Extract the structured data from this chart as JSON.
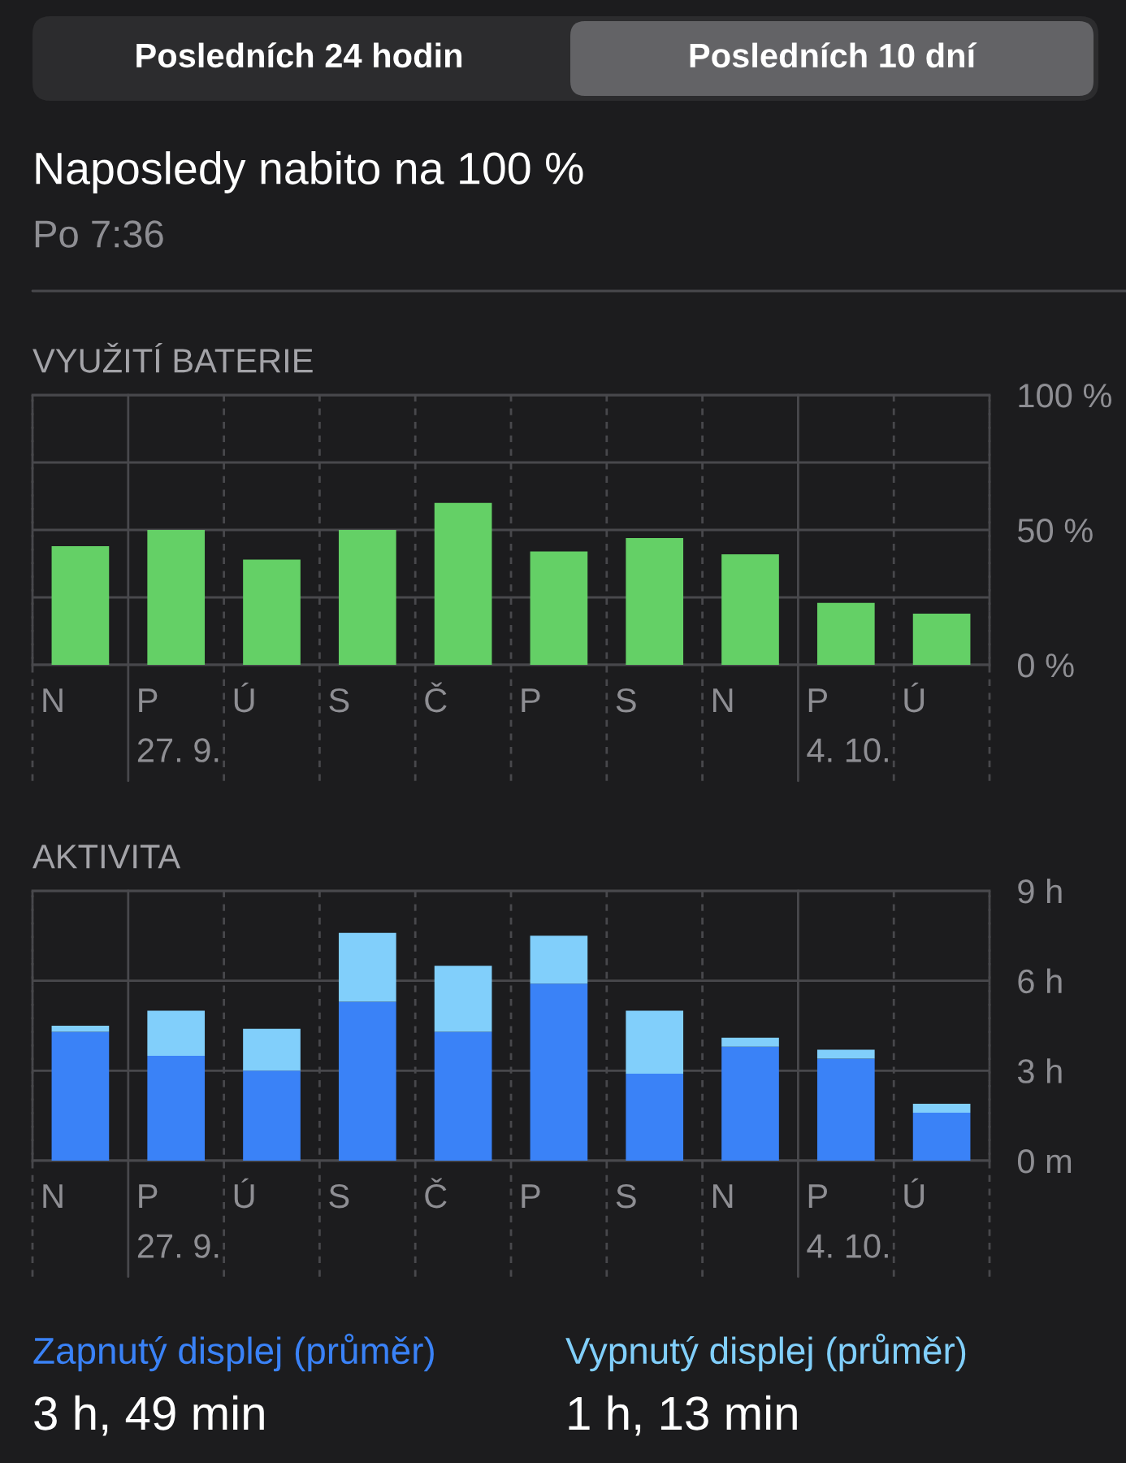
{
  "chart_data": [
    {
      "type": "other",
      "title": "Naposledy nabito na 100 %",
      "subtitle": "Po 7:36",
      "annotations": [
        "Posledních 24 hodin",
        "Posledních 10 dní"
      ]
    },
    {
      "type": "bar",
      "title": "VYUŽITÍ BATERIE",
      "categories": [
        "N",
        "P\n27. 9.",
        "Ú",
        "S",
        "Č",
        "P",
        "S",
        "N",
        "P\n4. 10.",
        "Ú"
      ],
      "values": [
        44,
        50,
        39,
        50,
        60,
        42,
        47,
        41,
        23,
        19
      ],
      "color": "#64d066",
      "ylim": [
        0,
        100
      ],
      "yticks": [
        {
          "value": 0,
          "label": "0 %"
        },
        {
          "value": 25,
          "label": null
        },
        {
          "value": 50,
          "label": "50 %"
        },
        {
          "value": 75,
          "label": null
        },
        {
          "value": 100,
          "label": "100 %"
        }
      ],
      "grid": true
    },
    {
      "type": "bar",
      "title": "AKTIVITA",
      "categories": [
        "N",
        "P\n27. 9.",
        "Ú",
        "S",
        "Č",
        "P",
        "S",
        "N",
        "P\n4. 10.",
        "Ú"
      ],
      "stacked": true,
      "series": [
        {
          "name": "Zapnutý displej (průměr)",
          "color": "#3a82f7",
          "values": [
            4.3,
            3.5,
            3.0,
            5.3,
            4.3,
            5.9,
            2.9,
            3.8,
            3.4,
            1.6
          ]
        },
        {
          "name": "Vypnutý displej (průměr)",
          "color": "#81cffb",
          "values": [
            0.2,
            1.5,
            1.4,
            2.3,
            2.2,
            1.6,
            2.1,
            0.3,
            0.3,
            0.3
          ]
        }
      ],
      "ylim": [
        0,
        9
      ],
      "yticks": [
        {
          "value": 0,
          "label": "0 m"
        },
        {
          "value": 3,
          "label": "3 h"
        },
        {
          "value": 6,
          "label": "6 h"
        },
        {
          "value": 9,
          "label": "9 h"
        }
      ],
      "grid": true,
      "legend": "bottom",
      "annotations": [
        "3 h, 49 min",
        "1 h, 13 min"
      ]
    }
  ]
}
